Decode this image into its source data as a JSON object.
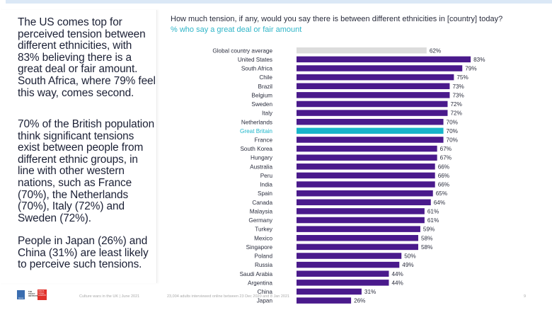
{
  "text": {
    "p1": "The US comes top for perceived tension between different ethnicities, with 83% believing there is a great deal or fair amount. South Africa, where 79% feel this way, comes second.",
    "p2": "70% of the British population think significant tensions exist between people from different ethnic groups, in line with other western nations, such as France (70%), the Netherlands (70%), Italy (72%) and Sweden (72%).",
    "p3": "People in Japan (26%) and China (31%) are least likely to perceive such tensions."
  },
  "footer": {
    "source": "Culture wars in the UK | June 2021",
    "note": "23,004 adults interviewed online between 23 Dec 2020 and 8 Jan 2021",
    "page": "9",
    "logo_ipsos": "Ipsos",
    "logo_policy": "THE POLICY INSTITUTE",
    "logo_kings": "KING'S College LONDON"
  },
  "colors": {
    "bar": "#4a1a8c",
    "average": "#dcdcdc",
    "highlight": "#19b5ca",
    "highlight_label": "#19b5ca"
  },
  "chart_data": {
    "type": "bar",
    "orientation": "horizontal",
    "title": "How much tension, if any, would you say there is between different ethnicities in [country] today?",
    "subtitle": "% who say a great deal or fair amount",
    "unit": "%",
    "xlim": [
      0,
      100
    ],
    "grid": false,
    "categories": [
      "Global country average",
      "United States",
      "South Africa",
      "Chile",
      "Brazil",
      "Belgium",
      "Sweden",
      "Italy",
      "Netherlands",
      "Great Britain",
      "France",
      "South Korea",
      "Hungary",
      "Australia",
      "Peru",
      "India",
      "Spain",
      "Canada",
      "Malaysia",
      "Germany",
      "Turkey",
      "Mexico",
      "Singapore",
      "Poland",
      "Russia",
      "Saudi Arabia",
      "Argentina",
      "China",
      "Japan"
    ],
    "values": [
      62,
      83,
      79,
      75,
      73,
      73,
      72,
      72,
      70,
      70,
      70,
      67,
      67,
      66,
      66,
      66,
      65,
      64,
      61,
      61,
      59,
      58,
      58,
      50,
      49,
      44,
      44,
      31,
      26
    ],
    "highlight": {
      "Global country average": "average",
      "Great Britain": "highlight"
    }
  }
}
